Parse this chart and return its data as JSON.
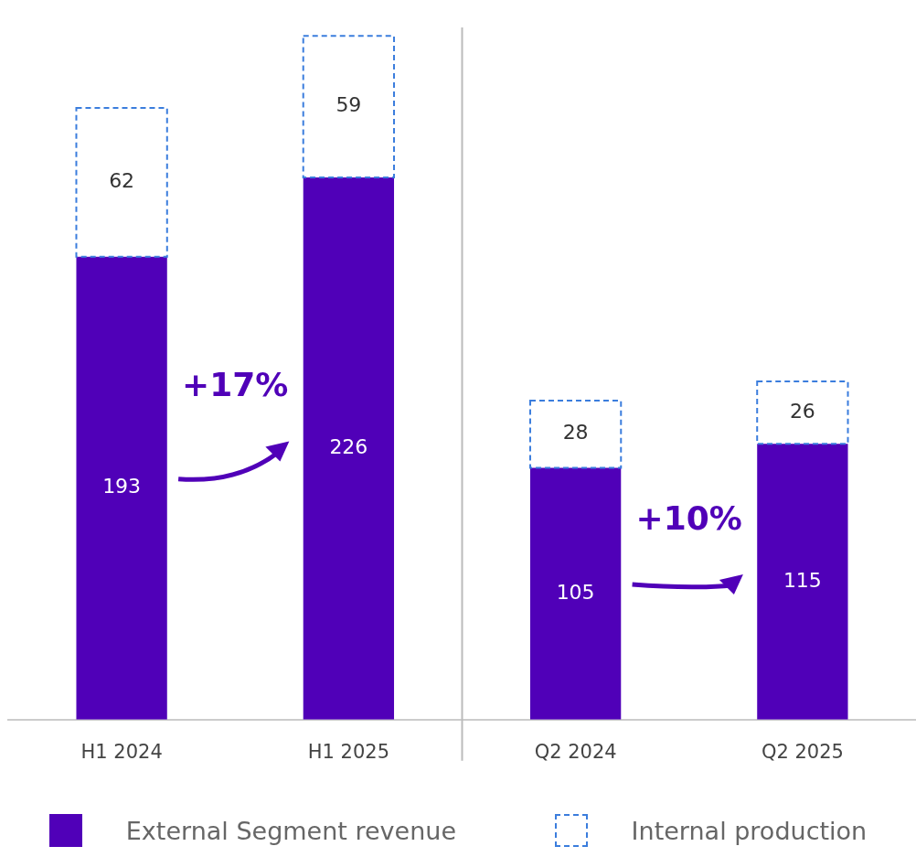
{
  "chart_data": {
    "type": "bar",
    "stacked": true,
    "categories": [
      "H1 2024",
      "H1 2025",
      "Q2 2024",
      "Q2 2025"
    ],
    "series": [
      {
        "name": "External Segment revenue",
        "color": "#5000b8",
        "values": [
          193,
          226,
          105,
          115
        ]
      },
      {
        "name": "Internal production",
        "color": "#3b7ddd",
        "line_style": "dashed",
        "values": [
          62,
          59,
          28,
          26
        ]
      }
    ],
    "data_labels": true,
    "legend": "bottom",
    "grid": false,
    "tick_labels": "x",
    "annotations": [
      "+17%",
      "+10%"
    ]
  }
}
